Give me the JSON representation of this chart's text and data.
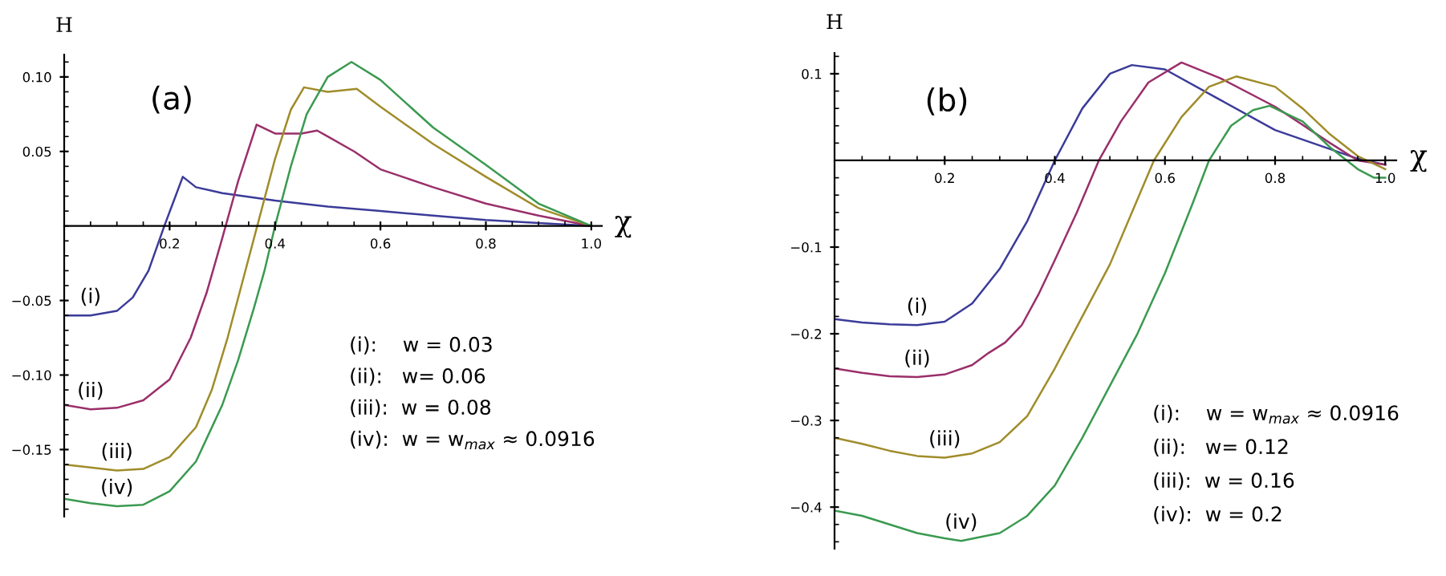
{
  "chart_data": [
    {
      "type": "line",
      "title": "(a)",
      "xlabel": "χ",
      "ylabel": "H",
      "xlim": [
        0,
        1.02
      ],
      "ylim": [
        -0.195,
        0.115
      ],
      "xticks": [
        0.2,
        0.4,
        0.6,
        0.8,
        {
          "value": 1.0,
          "label": "1.0"
        }
      ],
      "yticks": [
        {
          "value": -0.15,
          "label": "−0.15"
        },
        {
          "value": -0.1,
          "label": "−0.10"
        },
        {
          "value": -0.05,
          "label": "−0.05"
        },
        {
          "value": 0.05,
          "label": "0.05"
        },
        {
          "value": 0.1,
          "label": "0.10"
        }
      ],
      "grid": false,
      "legend": false,
      "marker": "none",
      "line_style": "solid",
      "series": [
        {
          "color": "#3b3b9a",
          "x": [
            0,
            0.05,
            0.1,
            0.13,
            0.16,
            0.19,
            0.225,
            0.25,
            0.3,
            0.4,
            0.5,
            0.6,
            0.7,
            0.8,
            0.9,
            1.0
          ],
          "values": [
            -0.06,
            -0.06,
            -0.057,
            -0.048,
            -0.03,
            0.0,
            0.033,
            0.026,
            0.022,
            0.017,
            0.013,
            0.01,
            0.007,
            0.004,
            0.002,
            0.0
          ]
        },
        {
          "color": "#9a2f6a",
          "x": [
            0,
            0.05,
            0.1,
            0.15,
            0.2,
            0.24,
            0.27,
            0.3,
            0.33,
            0.365,
            0.4,
            0.45,
            0.48,
            0.5,
            0.55,
            0.6,
            0.7,
            0.8,
            0.9,
            1.0
          ],
          "values": [
            -0.12,
            -0.123,
            -0.122,
            -0.117,
            -0.103,
            -0.075,
            -0.045,
            -0.008,
            0.03,
            0.068,
            0.062,
            0.062,
            0.064,
            0.06,
            0.05,
            0.038,
            0.026,
            0.015,
            0.007,
            0.0
          ]
        },
        {
          "color": "#a08c2a",
          "x": [
            0,
            0.05,
            0.1,
            0.15,
            0.2,
            0.25,
            0.28,
            0.31,
            0.34,
            0.37,
            0.4,
            0.43,
            0.455,
            0.5,
            0.555,
            0.6,
            0.7,
            0.8,
            0.9,
            1.0
          ],
          "values": [
            -0.16,
            -0.162,
            -0.164,
            -0.163,
            -0.155,
            -0.135,
            -0.11,
            -0.075,
            -0.035,
            0.005,
            0.045,
            0.078,
            0.093,
            0.09,
            0.092,
            0.08,
            0.055,
            0.033,
            0.012,
            0.0
          ]
        },
        {
          "color": "#3a9a50",
          "x": [
            0,
            0.05,
            0.1,
            0.15,
            0.2,
            0.25,
            0.3,
            0.33,
            0.36,
            0.38,
            0.4,
            0.43,
            0.46,
            0.5,
            0.545,
            0.6,
            0.7,
            0.8,
            0.9,
            1.0
          ],
          "values": [
            -0.183,
            -0.186,
            -0.188,
            -0.187,
            -0.178,
            -0.158,
            -0.12,
            -0.09,
            -0.055,
            -0.03,
            0.0,
            0.04,
            0.075,
            0.1,
            0.11,
            0.098,
            0.066,
            0.041,
            0.015,
            0.0
          ]
        }
      ],
      "annotations": [
        "(i)",
        "(ii)",
        "(iii)",
        "(iv)",
        "(i):    w = 0.03",
        "(ii):   w= 0.06",
        "(iii):  w = 0.08",
        "(iv):  w = w$_{max}$ ≈ 0.0916"
      ]
    },
    {
      "type": "line",
      "title": "(b)",
      "xlabel": "χ",
      "ylabel": "H",
      "xlim": [
        0,
        1.02
      ],
      "ylim": [
        -0.448,
        0.124
      ],
      "xticks": [
        0.2,
        0.4,
        0.6,
        0.8,
        {
          "value": 1.0,
          "label": "1.0"
        }
      ],
      "yticks": [
        {
          "value": -0.4,
          "label": "−0.4"
        },
        {
          "value": -0.3,
          "label": "−0.3"
        },
        {
          "value": -0.2,
          "label": "−0.2"
        },
        {
          "value": -0.1,
          "label": "−0.1"
        },
        0.1
      ],
      "grid": false,
      "legend": false,
      "marker": "none",
      "line_style": "solid",
      "series": [
        {
          "color": "#3b3b9a",
          "x": [
            0,
            0.05,
            0.1,
            0.15,
            0.2,
            0.25,
            0.3,
            0.35,
            0.4,
            0.45,
            0.5,
            0.54,
            0.6,
            0.7,
            0.8,
            0.9,
            0.95,
            1.0
          ],
          "values": [
            -0.183,
            -0.187,
            -0.189,
            -0.19,
            -0.186,
            -0.165,
            -0.125,
            -0.07,
            0.0,
            0.06,
            0.1,
            0.11,
            0.105,
            0.07,
            0.035,
            0.013,
            0.002,
            -0.005
          ]
        },
        {
          "color": "#9a2f6a",
          "x": [
            0,
            0.05,
            0.1,
            0.15,
            0.2,
            0.25,
            0.28,
            0.31,
            0.34,
            0.37,
            0.4,
            0.44,
            0.48,
            0.52,
            0.57,
            0.63,
            0.7,
            0.8,
            0.9,
            0.95,
            1.0
          ],
          "values": [
            -0.24,
            -0.245,
            -0.249,
            -0.25,
            -0.247,
            -0.236,
            -0.222,
            -0.21,
            -0.19,
            -0.155,
            -0.115,
            -0.06,
            0.0,
            0.045,
            0.09,
            0.113,
            0.095,
            0.062,
            0.02,
            0.0,
            -0.005
          ]
        },
        {
          "color": "#a08c2a",
          "x": [
            0,
            0.05,
            0.1,
            0.15,
            0.2,
            0.25,
            0.3,
            0.35,
            0.4,
            0.45,
            0.5,
            0.54,
            0.58,
            0.63,
            0.68,
            0.73,
            0.8,
            0.85,
            0.9,
            0.95,
            1.0
          ],
          "values": [
            -0.32,
            -0.327,
            -0.335,
            -0.341,
            -0.343,
            -0.338,
            -0.325,
            -0.295,
            -0.24,
            -0.18,
            -0.12,
            -0.06,
            0.0,
            0.05,
            0.085,
            0.097,
            0.085,
            0.06,
            0.03,
            0.005,
            -0.01
          ]
        },
        {
          "color": "#3a9a50",
          "x": [
            0,
            0.05,
            0.1,
            0.15,
            0.2,
            0.23,
            0.3,
            0.35,
            0.4,
            0.45,
            0.5,
            0.55,
            0.6,
            0.65,
            0.68,
            0.72,
            0.76,
            0.79,
            0.85,
            0.9,
            0.95,
            0.98,
            1.0
          ],
          "values": [
            -0.404,
            -0.41,
            -0.42,
            -0.43,
            -0.436,
            -0.439,
            -0.43,
            -0.41,
            -0.375,
            -0.32,
            -0.26,
            -0.2,
            -0.13,
            -0.05,
            0.0,
            0.04,
            0.058,
            0.063,
            0.045,
            0.015,
            -0.01,
            -0.02,
            -0.02
          ]
        }
      ],
      "annotations": [
        "(i)",
        "(ii)",
        "(iii)",
        "(iv)",
        "(i):    w = w$_{max}$ ≈ 0.0916",
        "(ii):   w= 0.12",
        "(iii):  w = 0.16",
        "(iv):  w = 0.2"
      ]
    }
  ]
}
